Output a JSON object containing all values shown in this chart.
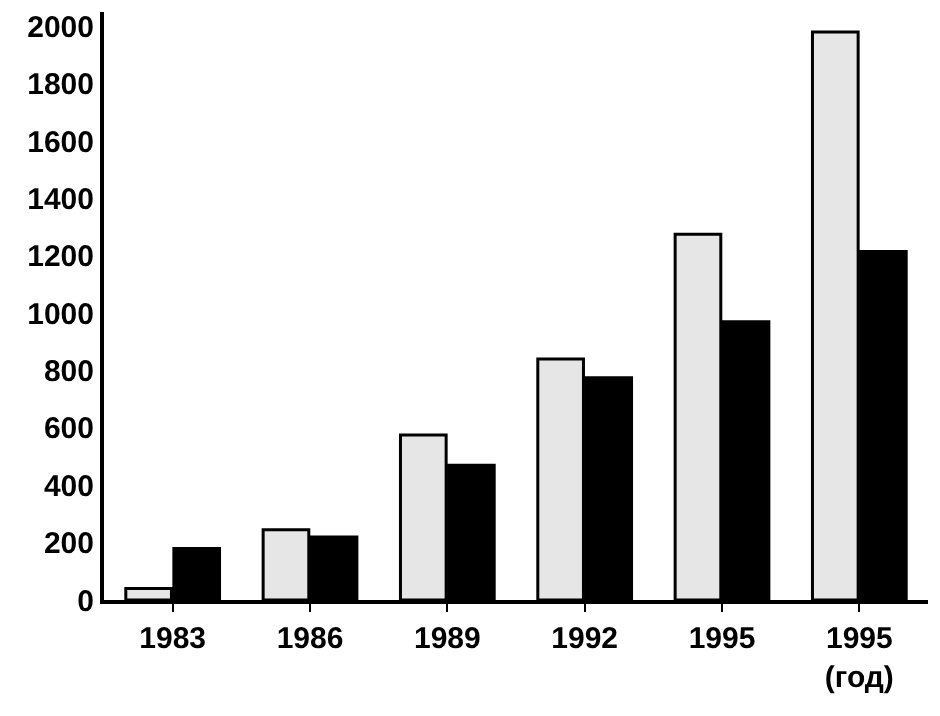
{
  "chart_data": {
    "type": "bar",
    "categories": [
      "1983",
      "1986",
      "1989",
      "1992",
      "1995",
      "1995\n(год)"
    ],
    "series": [
      {
        "color": "#e6e6e6",
        "values": [
          40,
          245,
          575,
          840,
          1275,
          1980
        ]
      },
      {
        "color": "#000000",
        "values": [
          180,
          220,
          470,
          775,
          970,
          1215
        ]
      }
    ],
    "ylim": [
      0,
      2050
    ],
    "yticks": [
      0,
      200,
      400,
      600,
      800,
      1000,
      1200,
      1400,
      1600,
      1800,
      2000
    ],
    "grid": false
  }
}
